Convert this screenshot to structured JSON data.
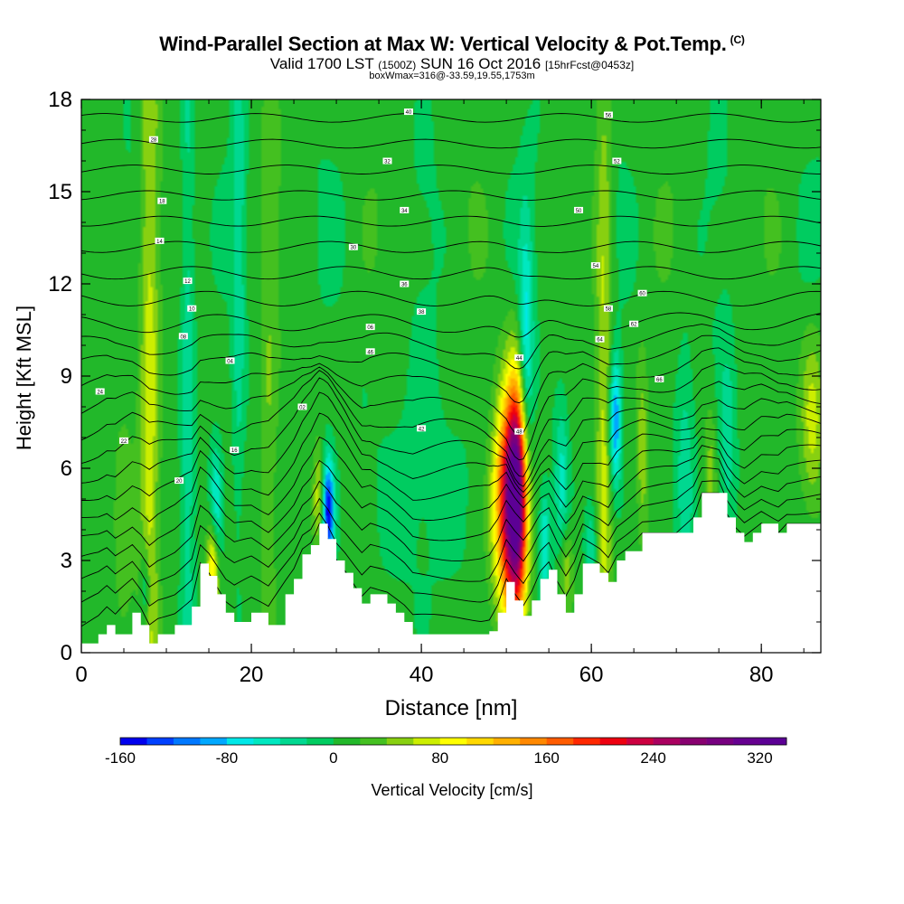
{
  "header": {
    "title": "Wind-Parallel Section at Max W: Vertical Velocity & Pot.Temp.",
    "copyright": "(C)",
    "valid_prefix": "Valid 1700 LST",
    "valid_utc": "(1500Z)",
    "valid_date": "SUN 16 Oct 2016",
    "forecast": "[15hrFcst@0453z]",
    "box_info": "boxWmax=316@-33.59,19.55,1753m"
  },
  "chart_data": {
    "type": "heatmap",
    "xlabel": "Distance [nm]",
    "ylabel": "Height [Kft MSL]",
    "xlim": [
      0,
      87
    ],
    "ylim": [
      0,
      18
    ],
    "x_ticks": [
      "0",
      "20",
      "40",
      "60",
      "80"
    ],
    "y_ticks": [
      "0",
      "3",
      "6",
      "9",
      "12",
      "15",
      "18"
    ],
    "colorbar": {
      "label": "Vertical Velocity [cm/s]",
      "tick_labels": [
        "-160",
        "-80",
        "0",
        "80",
        "160",
        "240",
        "320"
      ],
      "min": -160,
      "max": 340,
      "step": 20,
      "colors": [
        "#0000ee",
        "#0040ff",
        "#0078ff",
        "#00a8ff",
        "#00e8e8",
        "#00e8c0",
        "#00d890",
        "#00cc60",
        "#22b82a",
        "#44c020",
        "#88d010",
        "#ccee00",
        "#ffff00",
        "#ffd800",
        "#ffb000",
        "#ff8800",
        "#ff5c00",
        "#ff2800",
        "#ee0010",
        "#cc0040",
        "#aa0060",
        "#880070",
        "#770080",
        "#660090",
        "#5c0095"
      ]
    },
    "max_vertical_velocity": {
      "value": 316,
      "distance": 51.2,
      "height": 5.0
    },
    "terrain": [
      [
        0,
        0.3
      ],
      [
        2,
        0.6
      ],
      [
        3,
        0.9
      ],
      [
        4,
        0.6
      ],
      [
        6,
        1.3
      ],
      [
        7,
        0.9
      ],
      [
        8,
        0.3
      ],
      [
        9,
        0.6
      ],
      [
        11,
        0.9
      ],
      [
        13,
        1.5
      ],
      [
        14,
        2.9
      ],
      [
        15,
        2.5
      ],
      [
        16,
        1.9
      ],
      [
        17,
        1.3
      ],
      [
        18,
        1.0
      ],
      [
        20,
        1.3
      ],
      [
        22,
        0.9
      ],
      [
        24,
        1.9
      ],
      [
        25,
        2.4
      ],
      [
        26,
        3.2
      ],
      [
        27,
        3.5
      ],
      [
        28,
        4.2
      ],
      [
        29,
        3.7
      ],
      [
        30,
        3.0
      ],
      [
        31,
        2.6
      ],
      [
        32,
        2.1
      ],
      [
        33,
        1.6
      ],
      [
        34,
        1.9
      ],
      [
        36,
        1.6
      ],
      [
        37,
        1.3
      ],
      [
        38,
        1.0
      ],
      [
        39,
        0.6
      ],
      [
        41,
        0.6
      ],
      [
        43,
        0.6
      ],
      [
        45,
        0.6
      ],
      [
        47,
        0.6
      ],
      [
        48,
        0.7
      ],
      [
        49,
        1.3
      ],
      [
        50,
        2.3
      ],
      [
        51,
        1.7
      ],
      [
        52,
        1.2
      ],
      [
        53,
        1.7
      ],
      [
        54,
        2.4
      ],
      [
        55,
        2.7
      ],
      [
        56,
        1.9
      ],
      [
        57,
        1.3
      ],
      [
        58,
        1.9
      ],
      [
        59,
        2.9
      ],
      [
        61,
        2.6
      ],
      [
        62,
        2.3
      ],
      [
        63,
        3.0
      ],
      [
        64,
        3.3
      ],
      [
        66,
        3.9
      ],
      [
        68,
        3.9
      ],
      [
        70,
        3.9
      ],
      [
        72,
        4.4
      ],
      [
        73,
        5.2
      ],
      [
        75,
        5.2
      ],
      [
        76,
        4.4
      ],
      [
        77,
        3.9
      ],
      [
        78,
        3.6
      ],
      [
        79,
        3.9
      ],
      [
        80,
        4.2
      ],
      [
        82,
        3.9
      ],
      [
        83,
        4.2
      ],
      [
        85,
        4.2
      ],
      [
        87,
        4.2
      ]
    ],
    "updraft_bands": [
      {
        "x": 51.2,
        "y": 5.0,
        "sx": 0.9,
        "sy": 2.6,
        "w": 316
      },
      {
        "x": 49.8,
        "y": 4.8,
        "sx": 1.1,
        "sy": 2.4,
        "w": 150
      },
      {
        "x": 8.0,
        "y": 8.0,
        "sx": 0.8,
        "sy": 12,
        "w": 65
      },
      {
        "x": 15.5,
        "y": 2.8,
        "sx": 0.5,
        "sy": 1.2,
        "w": 125
      },
      {
        "x": 22.0,
        "y": 6.5,
        "sx": 0.7,
        "sy": 9,
        "w": 28
      },
      {
        "x": 28.0,
        "y": 5.0,
        "sx": 0.5,
        "sy": 1.2,
        "w": 70
      },
      {
        "x": 61.5,
        "y": 8.0,
        "sx": 0.7,
        "sy": 10,
        "w": 60
      },
      {
        "x": 66.0,
        "y": 6.5,
        "sx": 0.5,
        "sy": 2.2,
        "w": 45
      },
      {
        "x": 74.0,
        "y": 6.0,
        "sx": 0.5,
        "sy": 1.5,
        "w": 38
      },
      {
        "x": 86.0,
        "y": 7.5,
        "sx": 1.0,
        "sy": 2.0,
        "w": 60
      },
      {
        "x": 5.0,
        "y": 4.0,
        "sx": 1.0,
        "sy": 6,
        "w": 18
      },
      {
        "x": 57.0,
        "y": 2.8,
        "sx": 0.6,
        "sy": 1.0,
        "w": 55
      }
    ],
    "downdraft_bands": [
      {
        "x": 29.0,
        "y": 4.6,
        "sx": 0.5,
        "sy": 1.2,
        "w": -165
      },
      {
        "x": 62.8,
        "y": 7.5,
        "sx": 0.5,
        "sy": 1.5,
        "w": -115
      },
      {
        "x": 52.3,
        "y": 9.5,
        "sx": 0.6,
        "sy": 3.0,
        "w": -85
      },
      {
        "x": 15.8,
        "y": 4.5,
        "sx": 0.5,
        "sy": 1.5,
        "w": -80
      },
      {
        "x": 12.5,
        "y": 9.0,
        "sx": 0.6,
        "sy": 10,
        "w": -45
      },
      {
        "x": 18.5,
        "y": 13.0,
        "sx": 0.5,
        "sy": 6,
        "w": -40
      },
      {
        "x": 7.5,
        "y": 2.0,
        "sx": 0.4,
        "sy": 1.0,
        "w": -60
      },
      {
        "x": 54.5,
        "y": 3.5,
        "sx": 0.5,
        "sy": 1.2,
        "w": -75
      },
      {
        "x": 56.5,
        "y": 5.5,
        "sx": 0.6,
        "sy": 2.0,
        "w": -55
      },
      {
        "x": 60.0,
        "y": 3.5,
        "sx": 0.5,
        "sy": 1.0,
        "w": -50
      },
      {
        "x": 71.0,
        "y": 6.0,
        "sx": 0.8,
        "sy": 3.0,
        "w": -40
      },
      {
        "x": 76.0,
        "y": 7.0,
        "sx": 0.7,
        "sy": 2.0,
        "w": -45
      },
      {
        "x": 40.0,
        "y": 5.5,
        "sx": 5.0,
        "sy": 3.0,
        "w": -15
      }
    ],
    "isentrope_levels": 25,
    "isentrope_labels": [
      {
        "x": 2.2,
        "y": 8.5,
        "t": "24"
      },
      {
        "x": 5.0,
        "y": 6.9,
        "t": "22"
      },
      {
        "x": 8.5,
        "y": 16.7,
        "t": "28"
      },
      {
        "x": 9.5,
        "y": 14.7,
        "t": "18"
      },
      {
        "x": 9.2,
        "y": 13.4,
        "t": "14"
      },
      {
        "x": 12.5,
        "y": 12.1,
        "t": "12"
      },
      {
        "x": 13.0,
        "y": 11.2,
        "t": "10"
      },
      {
        "x": 12.0,
        "y": 10.3,
        "t": "08"
      },
      {
        "x": 17.5,
        "y": 9.5,
        "t": "04"
      },
      {
        "x": 11.5,
        "y": 5.6,
        "t": "20"
      },
      {
        "x": 18.0,
        "y": 6.6,
        "t": "16"
      },
      {
        "x": 26.0,
        "y": 8.0,
        "t": "02"
      },
      {
        "x": 32.0,
        "y": 13.2,
        "t": "30"
      },
      {
        "x": 36.0,
        "y": 16.0,
        "t": "32"
      },
      {
        "x": 38.5,
        "y": 17.6,
        "t": "40"
      },
      {
        "x": 38.0,
        "y": 14.4,
        "t": "34"
      },
      {
        "x": 38.0,
        "y": 12.0,
        "t": "36"
      },
      {
        "x": 40.0,
        "y": 11.1,
        "t": "38"
      },
      {
        "x": 34.0,
        "y": 10.6,
        "t": "06"
      },
      {
        "x": 34.0,
        "y": 9.8,
        "t": "46"
      },
      {
        "x": 40.0,
        "y": 7.3,
        "t": "42"
      },
      {
        "x": 58.5,
        "y": 14.4,
        "t": "50"
      },
      {
        "x": 60.5,
        "y": 12.6,
        "t": "54"
      },
      {
        "x": 63.0,
        "y": 16.0,
        "t": "52"
      },
      {
        "x": 62.0,
        "y": 17.5,
        "t": "56"
      },
      {
        "x": 66.0,
        "y": 11.7,
        "t": "60"
      },
      {
        "x": 62.0,
        "y": 11.2,
        "t": "58"
      },
      {
        "x": 65.0,
        "y": 10.7,
        "t": "62"
      },
      {
        "x": 61.0,
        "y": 10.2,
        "t": "64"
      },
      {
        "x": 68.0,
        "y": 8.9,
        "t": "66"
      },
      {
        "x": 51.5,
        "y": 9.6,
        "t": "44"
      },
      {
        "x": 51.5,
        "y": 7.2,
        "t": "48"
      }
    ]
  }
}
